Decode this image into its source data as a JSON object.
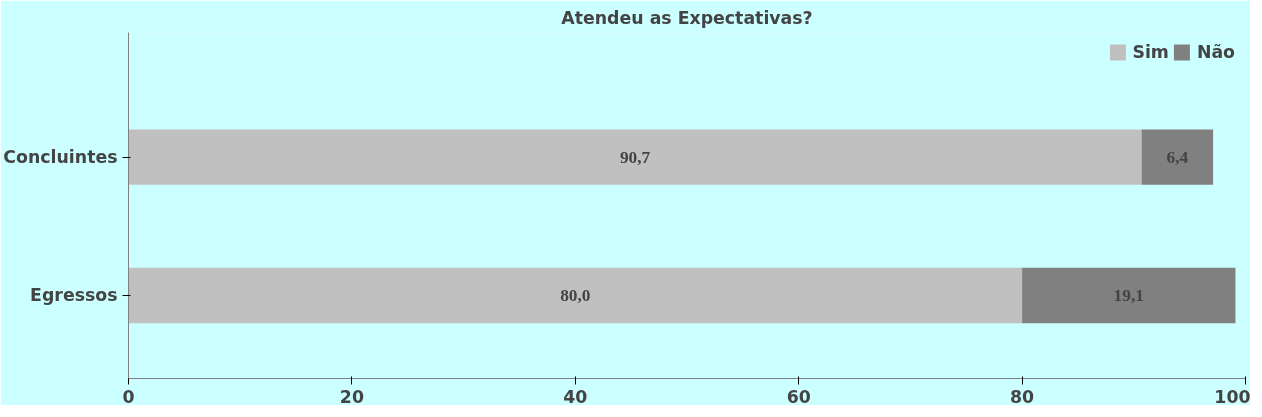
{
  "chart_data": {
    "type": "bar",
    "orientation": "horizontal",
    "stacked": true,
    "title": "Atendeu as Expectativas?",
    "categories": [
      "Concluintes",
      "Egressos"
    ],
    "series": [
      {
        "name": "Sim",
        "color": "#c0c0c0",
        "values": [
          90.7,
          80.0
        ],
        "value_labels": [
          "90,7",
          "80,0"
        ]
      },
      {
        "name": "Não",
        "color": "#808080",
        "values": [
          6.4,
          19.1
        ],
        "value_labels": [
          "6,4",
          "19,1"
        ]
      }
    ],
    "xlim": [
      0,
      100
    ],
    "xticks": [
      0,
      20,
      40,
      60,
      80,
      100
    ],
    "grid": false,
    "legend": "top right"
  }
}
